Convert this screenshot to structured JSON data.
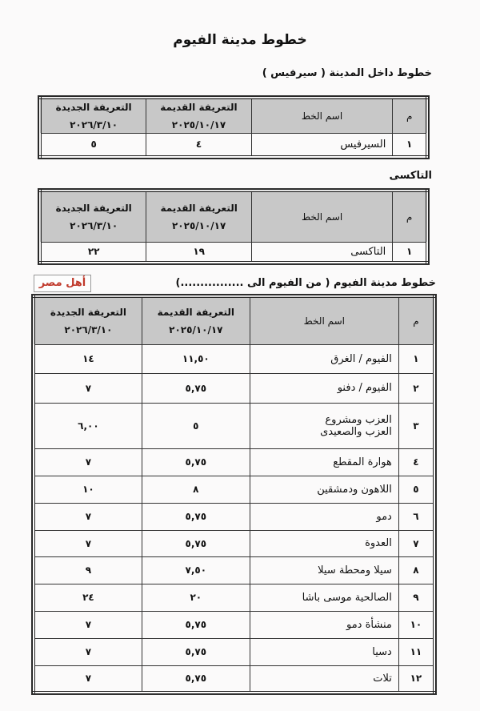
{
  "document": {
    "title": "خطوط مدينة الفيوم",
    "watermark": "أهل مصر",
    "header": {
      "col_index": "م",
      "col_name": "اسم الخط",
      "col_old": "التعريفة القديمة",
      "col_old_date": "٢٠٢٥/١٠/١٧",
      "col_new": "التعريفة الجديدة",
      "col_new_date": "٢٠٢٦/٣/١٠"
    },
    "sections": [
      {
        "heading": "خطوط داخل المدينة ( سيرفيس )",
        "rows": [
          {
            "index": "١",
            "name": "السيرفيس",
            "old": "٤",
            "new": "٥"
          }
        ]
      },
      {
        "heading": "التاكسى",
        "rows": [
          {
            "index": "١",
            "name": "التاكسى",
            "old": "١٩",
            "new": "٢٢"
          }
        ]
      },
      {
        "heading": "خطوط مدينة الفيوم ( من الفيوم الى ................)",
        "rows": [
          {
            "index": "١",
            "name": "الفيوم / الغرق",
            "old": "١١,٥٠",
            "new": "١٤"
          },
          {
            "index": "٢",
            "name": "الفيوم / دفنو",
            "old": "٥,٧٥",
            "new": "٧"
          },
          {
            "index": "٣",
            "name": "العزب ومشروع العزب والصعيدى",
            "old": "٥",
            "new": "٦,٠٠"
          },
          {
            "index": "٤",
            "name": "هوارة المقطع",
            "old": "٥,٧٥",
            "new": "٧"
          },
          {
            "index": "٥",
            "name": "اللاهون ودمشقين",
            "old": "٨",
            "new": "١٠"
          },
          {
            "index": "٦",
            "name": "دمو",
            "old": "٥,٧٥",
            "new": "٧"
          },
          {
            "index": "٧",
            "name": "العدوة",
            "old": "٥,٧٥",
            "new": "٧"
          },
          {
            "index": "٨",
            "name": "سيلا ومحطة سيلا",
            "old": "٧,٥٠",
            "new": "٩"
          },
          {
            "index": "٩",
            "name": "الصالحية موسى باشا",
            "old": "٢٠",
            "new": "٢٤"
          },
          {
            "index": "١٠",
            "name": "منشأة دمو",
            "old": "٥,٧٥",
            "new": "٧"
          },
          {
            "index": "١١",
            "name": "دسيا",
            "old": "٥,٧٥",
            "new": "٧"
          },
          {
            "index": "١٢",
            "name": "تلات",
            "old": "٥,٧٥",
            "new": "٧"
          }
        ]
      }
    ]
  }
}
